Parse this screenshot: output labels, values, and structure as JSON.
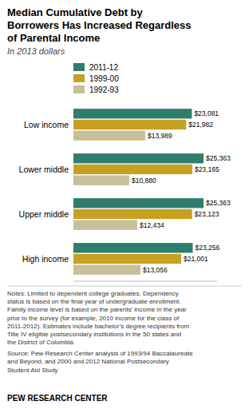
{
  "chart_data": {
    "type": "bar",
    "orientation": "horizontal",
    "title": "Median Cumulative Debt by\nBorrowers Has Increased Regardless\nof Parental Income",
    "subtitle": "In 2013 dollars",
    "categories": [
      "Low income",
      "Lower middle",
      "Upper middle",
      "High income"
    ],
    "series": [
      {
        "name": "2011-12",
        "color": "#2e7d6e",
        "values": [
          23081,
          25363,
          25363,
          23256
        ],
        "value_labels": [
          "$23,081",
          "$25,363",
          "$25,363",
          "$23,256"
        ]
      },
      {
        "name": "1999-00",
        "color": "#c8a020",
        "values": [
          21982,
          23165,
          23123,
          21001
        ],
        "value_labels": [
          "$21,982",
          "$23,165",
          "$23,123",
          "$21,001"
        ]
      },
      {
        "name": "1992-93",
        "color": "#c8bf98",
        "values": [
          13989,
          10880,
          12434,
          13056
        ],
        "value_labels": [
          "$13,989",
          "$10,880",
          "$12,434",
          "$13,056"
        ]
      }
    ],
    "xlim": [
      0,
      28000
    ],
    "grid": false,
    "legend": "top",
    "data_labels": true,
    "tick_labels": "y",
    "annotations": [
      "Notes: Limited to dependent college graduates. Dependency\nstatus is based on the final year of undergraduate enrollment.\nFamily income level is based on the parents’ income in the year\nprior to the survey (for example, 2010 income for the class of\n2011-2012). Estimates include bachelor’s degree recipients from\nTitle IV eligible postsecondary institutions in the 50 states and\nthe District of Columbia.",
      "Source: Pew Research Center analysis of 1993/94 Baccalaureate\nand Beyond, and 2000 and 2012 National Postsecondary\nStudent Aid Study",
      "PEW RESEARCH CENTER"
    ]
  }
}
